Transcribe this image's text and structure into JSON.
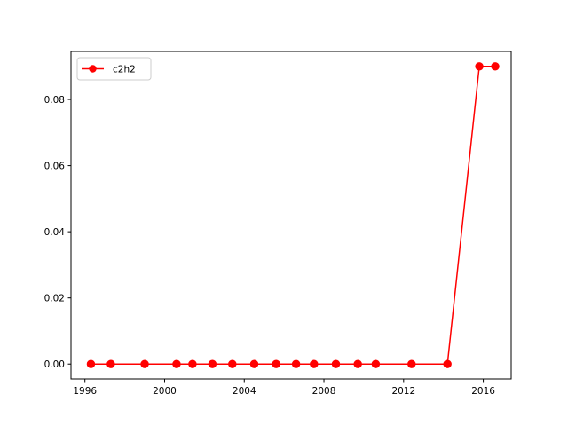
{
  "chart_data": {
    "type": "line",
    "title": "",
    "xlabel": "",
    "ylabel": "",
    "xlim": [
      1995.3,
      2017.4
    ],
    "ylim": [
      -0.0045,
      0.0945
    ],
    "xticks": [
      {
        "value": 1996,
        "label": "1996"
      },
      {
        "value": 2000,
        "label": "2000"
      },
      {
        "value": 2004,
        "label": "2004"
      },
      {
        "value": 2008,
        "label": "2008"
      },
      {
        "value": 2012,
        "label": "2012"
      },
      {
        "value": 2016,
        "label": "2016"
      }
    ],
    "yticks": [
      {
        "value": 0.0,
        "label": "0.00"
      },
      {
        "value": 0.02,
        "label": "0.02"
      },
      {
        "value": 0.04,
        "label": "0.04"
      },
      {
        "value": 0.06,
        "label": "0.06"
      },
      {
        "value": 0.08,
        "label": "0.08"
      }
    ],
    "grid": false,
    "legend_position": "top-left",
    "series": [
      {
        "name": "c2h2",
        "color": "#ff0000",
        "marker": "circle",
        "points": [
          {
            "x": 1996.3,
            "y": 0.0
          },
          {
            "x": 1997.3,
            "y": 0.0
          },
          {
            "x": 1999.0,
            "y": 0.0
          },
          {
            "x": 2000.6,
            "y": 0.0
          },
          {
            "x": 2001.4,
            "y": 0.0
          },
          {
            "x": 2002.4,
            "y": 0.0
          },
          {
            "x": 2003.4,
            "y": 0.0
          },
          {
            "x": 2004.5,
            "y": 0.0
          },
          {
            "x": 2005.6,
            "y": 0.0
          },
          {
            "x": 2006.6,
            "y": 0.0
          },
          {
            "x": 2007.5,
            "y": 0.0
          },
          {
            "x": 2008.6,
            "y": 0.0
          },
          {
            "x": 2009.7,
            "y": 0.0
          },
          {
            "x": 2010.6,
            "y": 0.0
          },
          {
            "x": 2012.4,
            "y": 0.0
          },
          {
            "x": 2014.2,
            "y": 0.0
          },
          {
            "x": 2015.8,
            "y": 0.09
          },
          {
            "x": 2016.6,
            "y": 0.09
          }
        ]
      }
    ]
  }
}
